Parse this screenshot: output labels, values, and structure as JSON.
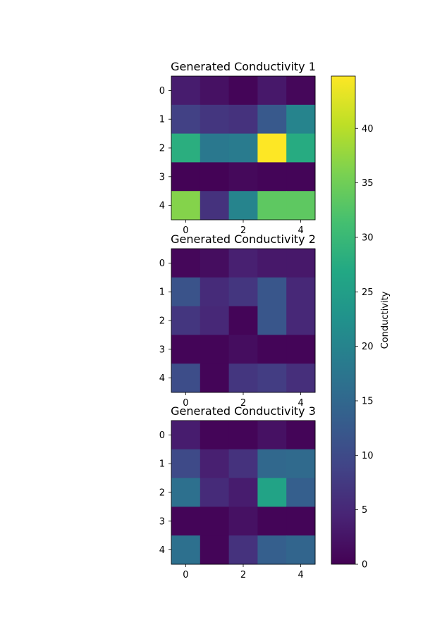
{
  "chart_data": {
    "type": "heatmap",
    "colormap": "viridis",
    "vmin": 0,
    "vmax": 44.8,
    "colorbar": {
      "label": "Conductivity",
      "ticks": [
        0,
        5,
        10,
        15,
        20,
        25,
        30,
        35,
        40
      ]
    },
    "panels": [
      {
        "title": "Generated Conductivity 1",
        "x_ticks": [
          0,
          2,
          4
        ],
        "y_ticks": [
          0,
          1,
          2,
          3,
          4
        ],
        "values": [
          [
            3.5,
            2.0,
            0.5,
            3.0,
            0.8
          ],
          [
            8.5,
            7.0,
            6.5,
            12.5,
            20.0
          ],
          [
            28.0,
            18.0,
            18.5,
            44.8,
            27.5
          ],
          [
            0.3,
            0.3,
            1.0,
            0.5,
            0.5
          ],
          [
            36.5,
            6.5,
            20.0,
            33.5,
            33.5
          ]
        ]
      },
      {
        "title": "Generated Conductivity 2",
        "x_ticks": [
          0,
          2,
          4
        ],
        "y_ticks": [
          0,
          1,
          2,
          3,
          4
        ],
        "values": [
          [
            0.8,
            1.5,
            4.0,
            3.0,
            3.0
          ],
          [
            11.5,
            5.5,
            7.0,
            12.0,
            5.0
          ],
          [
            7.0,
            5.0,
            0.5,
            12.0,
            5.0
          ],
          [
            0.5,
            0.5,
            1.5,
            0.5,
            0.5
          ],
          [
            10.5,
            0.5,
            7.0,
            8.0,
            6.0
          ]
        ]
      },
      {
        "title": "Generated Conductivity 3",
        "x_ticks": [
          0,
          2,
          4
        ],
        "y_ticks": [
          0,
          1,
          2,
          3,
          4
        ],
        "values": [
          [
            3.5,
            0.5,
            0.5,
            2.0,
            0.5
          ],
          [
            10.0,
            4.0,
            6.5,
            15.0,
            15.5
          ],
          [
            16.5,
            5.5,
            3.5,
            26.0,
            13.5
          ],
          [
            0.5,
            0.5,
            2.0,
            0.5,
            0.5
          ],
          [
            16.5,
            0.5,
            6.5,
            13.5,
            14.5
          ]
        ]
      }
    ]
  }
}
